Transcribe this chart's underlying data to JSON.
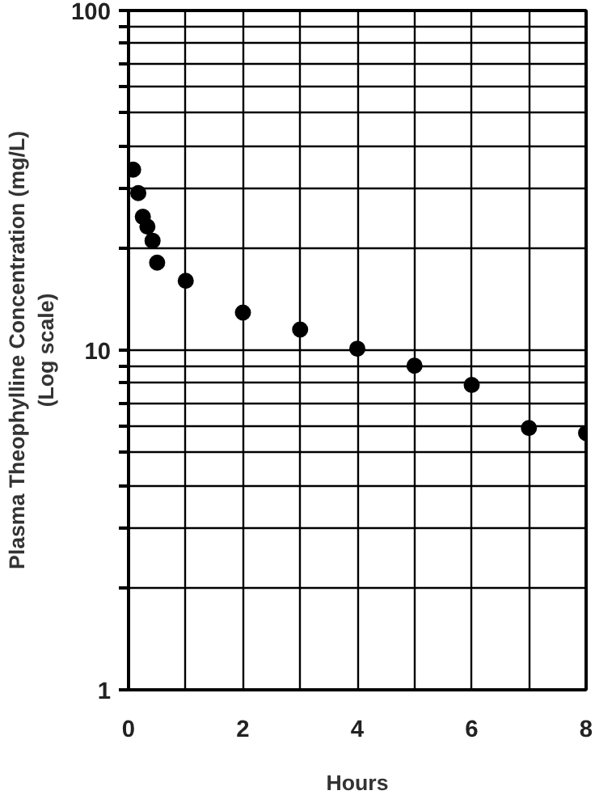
{
  "chart_data": {
    "type": "scatter",
    "xlabel": "Hours",
    "ylabel": "Plasma Theophylline Concentration (mg/L)\n(Log scale)",
    "x": [
      0.08,
      0.17,
      0.25,
      0.33,
      0.42,
      0.5,
      1,
      2,
      3,
      4,
      5,
      6,
      7,
      8
    ],
    "series": [
      {
        "color": "#000000",
        "values": [
          34,
          29,
          24.7,
          23.1,
          21.0,
          18.1,
          16.0,
          12.9,
          11.5,
          10.1,
          9.0,
          7.9,
          5.9,
          5.7
        ]
      }
    ],
    "log": "y",
    "xlim": [
      0,
      8
    ],
    "ylim": [
      1,
      100
    ],
    "xticks": [
      0,
      {
        "value": 1,
        "label": null
      },
      2,
      {
        "value": 3,
        "label": null
      },
      4,
      {
        "value": 5,
        "label": null
      },
      6,
      {
        "value": 7,
        "label": null
      },
      8
    ],
    "yticks": [
      1,
      {
        "value": 2,
        "label": null
      },
      {
        "value": 3,
        "label": null
      },
      {
        "value": 4,
        "label": null
      },
      {
        "value": 5,
        "label": null
      },
      {
        "value": 6,
        "label": null
      },
      {
        "value": 7,
        "label": null
      },
      {
        "value": 8,
        "label": null
      },
      {
        "value": 9,
        "label": null
      },
      10,
      {
        "value": 20,
        "label": null
      },
      {
        "value": 30,
        "label": null
      },
      {
        "value": 40,
        "label": null
      },
      {
        "value": 50,
        "label": null
      },
      {
        "value": 60,
        "label": null
      },
      {
        "value": 70,
        "label": null
      },
      {
        "value": 80,
        "label": null
      },
      {
        "value": 90,
        "label": null
      },
      100
    ],
    "grid": true,
    "marker": "circle"
  }
}
